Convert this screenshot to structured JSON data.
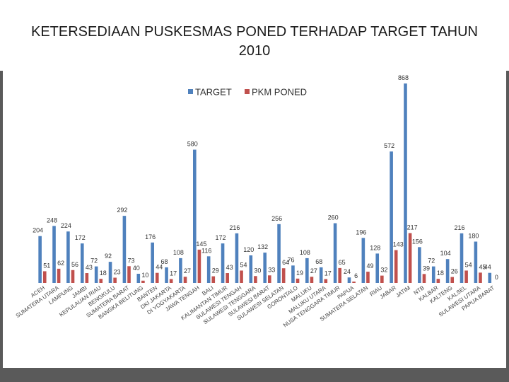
{
  "chart_data": {
    "type": "bar",
    "title": "KETERSEDIAAN PUSKESMAS PONED TERHADAP TARGET TAHUN 2010",
    "categories": [
      "ACEH",
      "SUMATERA UTARA",
      "LAMPUNG",
      "JAMBI",
      "KEPULAUAN RIAU",
      "BENGKULU",
      "SUMATERA BARAT",
      "BANGKA BELITUNG",
      "BANTEN",
      "DKI JAKARTA",
      "DI YOGYAKARTA",
      "JAWA TENGAH",
      "BALI",
      "KALIMANTAN TIMUR",
      "SULAWESI TENGAH",
      "SULAWESI TENGGARA",
      "SULAWESI BARAT",
      "SULAWESI SELATAN",
      "GORONTALO",
      "MALUKU",
      "MALUKU UTARA",
      "NUSA TENGGARA TIMUR",
      "PAPUA",
      "SUMATERA SELATAN",
      "RIAU",
      "JABAR",
      "JATIM",
      "NTB",
      "KALBAR",
      "KALTENG",
      "KALSEL",
      "SULAWESI UTARA",
      "PAPUA BARAT"
    ],
    "series": [
      {
        "name": "TARGET",
        "color": "#4f81bd",
        "values": [
          204,
          248,
          224,
          172,
          72,
          92,
          292,
          40,
          176,
          68,
          108,
          580,
          116,
          172,
          216,
          120,
          132,
          256,
          76,
          108,
          68,
          260,
          24,
          196,
          128,
          572,
          868,
          156,
          72,
          104,
          216,
          180,
          44
        ]
      },
      {
        "name": "PKM PONED",
        "color": "#c0504d",
        "values": [
          51,
          62,
          56,
          43,
          18,
          23,
          73,
          10,
          44,
          17,
          27,
          145,
          29,
          43,
          54,
          30,
          33,
          64,
          19,
          27,
          17,
          65,
          6,
          49,
          32,
          143,
          217,
          39,
          18,
          26,
          54,
          45,
          0
        ]
      }
    ]
  }
}
